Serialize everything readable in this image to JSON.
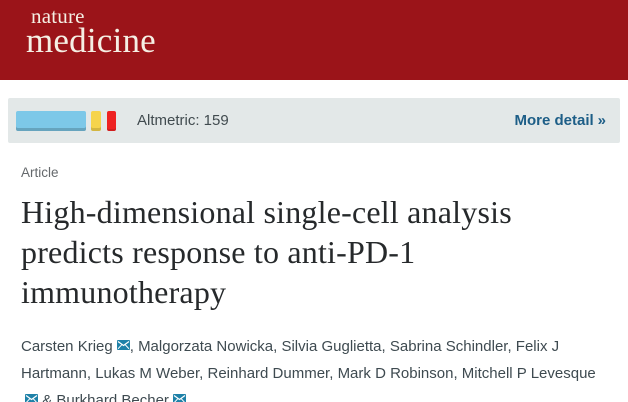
{
  "brand": {
    "journal_line1": "nature",
    "journal_line2": "medicine",
    "header_bg": "#9b1419",
    "logo_color": "#f5efe4"
  },
  "altmetric": {
    "score_label": "Altmetric: 159",
    "more_detail_label": "More detail",
    "more_detail_chevron": "»",
    "strip_bg": "#e3e8e8",
    "link_color": "#1d5e87",
    "segments": [
      {
        "name": "blue-segment",
        "color": "#7dc8e8"
      },
      {
        "name": "yellow-segment",
        "color": "#f6d44c"
      },
      {
        "name": "red-segment",
        "color": "#ee2222"
      }
    ]
  },
  "article": {
    "kicker": "Article",
    "title": "High-dimensional single-cell analysis predicts response to anti-PD-1 immunotherapy",
    "email_icon_color": "#1e81a8",
    "authors": [
      {
        "name": "Carsten Krieg",
        "email": true,
        "sep": ""
      },
      {
        "name": "Malgorzata Nowicka",
        "email": false,
        "sep": ", "
      },
      {
        "name": "Silvia Guglietta",
        "email": false,
        "sep": ", "
      },
      {
        "name": "Sabrina Schindler",
        "email": false,
        "sep": ", "
      },
      {
        "name": "Felix J Hartmann",
        "email": false,
        "sep": ", "
      },
      {
        "name": "Lukas M Weber",
        "email": false,
        "sep": ", "
      },
      {
        "name": "Reinhard Dummer",
        "email": false,
        "sep": ", "
      },
      {
        "name": "Mark D Robinson",
        "email": false,
        "sep": ", "
      },
      {
        "name": "Mitchell P Levesque",
        "email": true,
        "sep": ", "
      },
      {
        "name": "Burkhard Becher",
        "email": true,
        "sep": " & "
      }
    ]
  }
}
